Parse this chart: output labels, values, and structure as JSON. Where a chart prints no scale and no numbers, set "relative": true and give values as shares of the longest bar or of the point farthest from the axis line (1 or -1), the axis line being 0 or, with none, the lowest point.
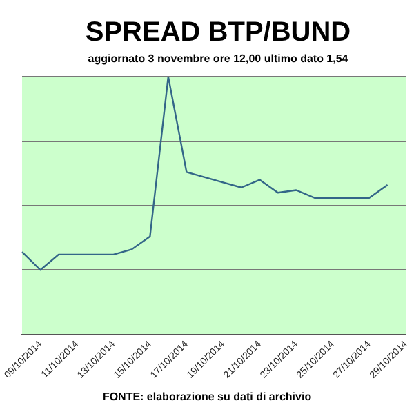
{
  "chart_data": {
    "type": "line",
    "title": "SPREAD BTP/BUND",
    "subtitle": "aggiornato 3 novembre ore 12,00 ultimo dato 1,54",
    "annotations": [
      "FONTE: elaborazione su dati di archivio"
    ],
    "categories": [
      null,
      "09/10/2014",
      null,
      "11/10/2014",
      null,
      "13/10/2014",
      null,
      "15/10/2014",
      null,
      "17/10/2014",
      null,
      "19/10/2014",
      null,
      "21/10/2014",
      null,
      "23/10/2014",
      null,
      "25/10/2014",
      null,
      "27/10/2014",
      null,
      "29/10/2014"
    ],
    "relative": true,
    "series": [
      {
        "color": "#336688",
        "values": [
          0.32,
          0.25,
          0.31,
          0.31,
          0.31,
          0.31,
          0.33,
          0.38,
          1.0,
          0.63,
          0.61,
          0.59,
          0.57,
          0.6,
          0.55,
          0.56,
          0.53,
          0.53,
          0.53,
          0.53,
          0.58,
          null
        ]
      }
    ],
    "grid": "y",
    "legend": false,
    "marker": "none",
    "line_style": "solid"
  }
}
